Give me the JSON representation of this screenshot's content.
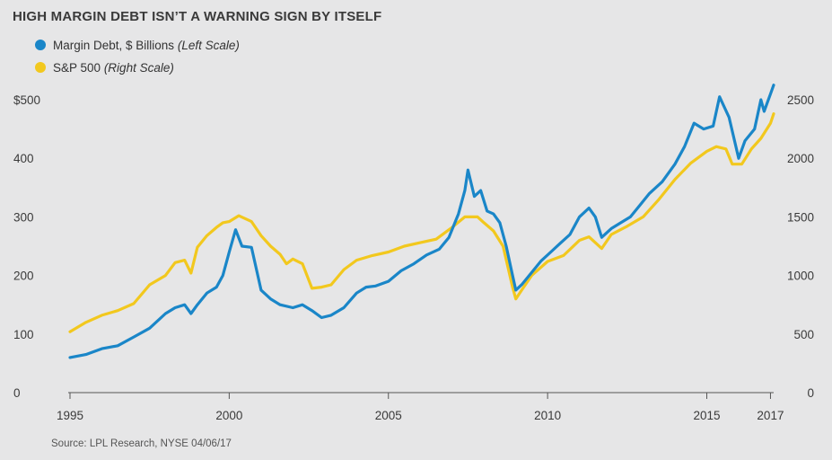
{
  "title": "HIGH MARGIN DEBT ISN’T A WARNING SIGN BY ITSELF",
  "legend": [
    {
      "label": "Margin Debt, $ Billions",
      "note": "(Left Scale)",
      "color": "#1a86c8"
    },
    {
      "label": "S&P 500",
      "note": "(Right Scale)",
      "color": "#f2c81e"
    }
  ],
  "source": "Source: LPL Research, NYSE   04/06/17",
  "chart_data": {
    "type": "line",
    "x_ticks": [
      "1995",
      "2000",
      "2005",
      "2010",
      "2015",
      "2017"
    ],
    "xlim": [
      1995,
      2017.1
    ],
    "left_axis": {
      "ticks": [
        "$500",
        "400",
        "300",
        "200",
        "100",
        "0"
      ],
      "values": [
        500,
        400,
        300,
        200,
        100,
        0
      ],
      "ylim": [
        0,
        500
      ]
    },
    "right_axis": {
      "ticks": [
        "2500",
        "2000",
        "1500",
        "1000",
        "500",
        "0"
      ],
      "values": [
        2500,
        2000,
        1500,
        1000,
        500,
        0
      ],
      "ylim": [
        0,
        2500
      ]
    },
    "grid": false,
    "legend_position": "top-left",
    "series": [
      {
        "name": "Margin Debt, $ Billions",
        "axis": "left",
        "color": "#1a86c8",
        "x": [
          1995.0,
          1995.5,
          1996.0,
          1996.5,
          1997.0,
          1997.5,
          1998.0,
          1998.3,
          1998.6,
          1998.8,
          1999.0,
          1999.3,
          1999.6,
          1999.8,
          2000.0,
          2000.2,
          2000.4,
          2000.7,
          2001.0,
          2001.3,
          2001.6,
          2002.0,
          2002.3,
          2002.6,
          2002.9,
          2003.2,
          2003.6,
          2004.0,
          2004.3,
          2004.6,
          2005.0,
          2005.4,
          2005.8,
          2006.2,
          2006.6,
          2006.9,
          2007.2,
          2007.4,
          2007.5,
          2007.7,
          2007.9,
          2008.1,
          2008.3,
          2008.5,
          2008.7,
          2008.9,
          2009.0,
          2009.2,
          2009.5,
          2009.8,
          2010.1,
          2010.4,
          2010.7,
          2011.0,
          2011.3,
          2011.5,
          2011.7,
          2012.0,
          2012.3,
          2012.6,
          2012.9,
          2013.2,
          2013.6,
          2014.0,
          2014.3,
          2014.6,
          2014.9,
          2015.2,
          2015.4,
          2015.7,
          2016.0,
          2016.2,
          2016.5,
          2016.7,
          2016.8,
          2016.9,
          2017.0,
          2017.1
        ],
        "values": [
          60,
          65,
          75,
          80,
          95,
          110,
          135,
          145,
          150,
          135,
          150,
          170,
          180,
          200,
          240,
          278,
          250,
          248,
          175,
          160,
          150,
          145,
          150,
          140,
          128,
          132,
          145,
          170,
          180,
          182,
          190,
          208,
          220,
          235,
          245,
          265,
          305,
          345,
          380,
          335,
          345,
          310,
          305,
          290,
          250,
          200,
          175,
          185,
          205,
          225,
          240,
          255,
          270,
          300,
          315,
          300,
          265,
          280,
          290,
          300,
          320,
          340,
          360,
          390,
          420,
          460,
          450,
          455,
          505,
          470,
          400,
          430,
          450,
          500,
          480,
          495,
          510,
          525
        ]
      },
      {
        "name": "S&P 500",
        "axis": "right",
        "color": "#f2c81e",
        "x": [
          1995.0,
          1995.5,
          1996.0,
          1996.5,
          1997.0,
          1997.5,
          1998.0,
          1998.3,
          1998.6,
          1998.8,
          1999.0,
          1999.3,
          1999.6,
          1999.8,
          2000.0,
          2000.3,
          2000.7,
          2001.0,
          2001.3,
          2001.6,
          2001.8,
          2002.0,
          2002.3,
          2002.6,
          2002.9,
          2003.2,
          2003.6,
          2004.0,
          2004.5,
          2005.0,
          2005.5,
          2006.0,
          2006.5,
          2007.0,
          2007.4,
          2007.8,
          2008.0,
          2008.3,
          2008.6,
          2008.9,
          2009.0,
          2009.2,
          2009.5,
          2010.0,
          2010.5,
          2011.0,
          2011.3,
          2011.7,
          2012.0,
          2012.5,
          2013.0,
          2013.5,
          2014.0,
          2014.5,
          2015.0,
          2015.3,
          2015.6,
          2015.8,
          2016.1,
          2016.4,
          2016.7,
          2017.0,
          2017.1
        ],
        "values": [
          520,
          600,
          660,
          700,
          760,
          920,
          1000,
          1110,
          1130,
          1020,
          1240,
          1340,
          1410,
          1450,
          1460,
          1510,
          1460,
          1340,
          1250,
          1180,
          1100,
          1140,
          1100,
          890,
          900,
          920,
          1050,
          1130,
          1170,
          1200,
          1250,
          1280,
          1310,
          1410,
          1500,
          1500,
          1450,
          1380,
          1250,
          900,
          800,
          880,
          1000,
          1120,
          1170,
          1300,
          1330,
          1230,
          1350,
          1420,
          1500,
          1650,
          1820,
          1960,
          2060,
          2100,
          2080,
          1950,
          1950,
          2080,
          2170,
          2300,
          2380
        ]
      }
    ]
  }
}
